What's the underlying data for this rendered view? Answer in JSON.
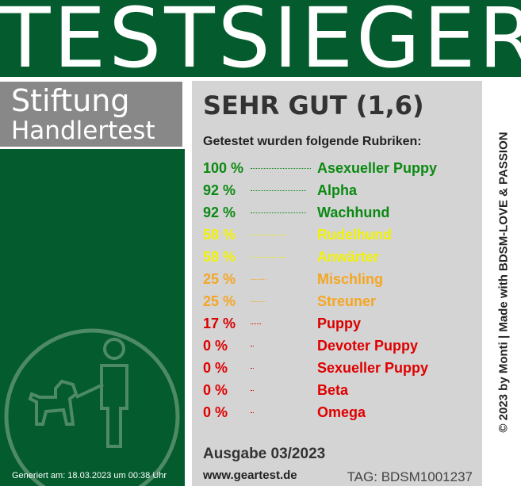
{
  "header": {
    "title": "TESTSIEGER"
  },
  "brand": {
    "line1": "Stiftung",
    "line2": "Handlertest"
  },
  "footnote": "Generiert am: 18.03.2023 um 00:38 Uhr",
  "result": {
    "rating": "SEHR GUT (1,6)",
    "intro": "Getestet wurden folgende Rubriken:",
    "items": [
      {
        "percent": "100 %",
        "value": 100,
        "label": "Asexueller Puppy",
        "color": "#0b8a12"
      },
      {
        "percent": "92 %",
        "value": 92,
        "label": "Alpha",
        "color": "#0b8a12"
      },
      {
        "percent": "92 %",
        "value": 92,
        "label": "Wachhund",
        "color": "#0b8a12"
      },
      {
        "percent": "58 %",
        "value": 58,
        "label": "Rudelhund",
        "color": "#f2f20a"
      },
      {
        "percent": "58 %",
        "value": 58,
        "label": "Anwärter",
        "color": "#f2f20a"
      },
      {
        "percent": "25 %",
        "value": 25,
        "label": "Mischling",
        "color": "#f5a623"
      },
      {
        "percent": "25 %",
        "value": 25,
        "label": "Streuner",
        "color": "#f5a623"
      },
      {
        "percent": "17 %",
        "value": 17,
        "label": "Puppy",
        "color": "#d90000"
      },
      {
        "percent": "0 %",
        "value": 0,
        "label": "Devoter Puppy",
        "color": "#e00000"
      },
      {
        "percent": "0 %",
        "value": 0,
        "label": "Sexueller Puppy",
        "color": "#e00000"
      },
      {
        "percent": "0 %",
        "value": 0,
        "label": "Beta",
        "color": "#e00000"
      },
      {
        "percent": "0 %",
        "value": 0,
        "label": "Omega",
        "color": "#e00000"
      }
    ],
    "edition": "Ausgabe 03/2023",
    "website": "www.geartest.de",
    "tag": "TAG: BDSM1001237"
  },
  "side_text": "© 2023 by Monti | Made with BDSM-LOVE & PASSION",
  "colors": {
    "header_bg": "#045c2e",
    "brand_bg": "#888888",
    "panel_bg": "#d4d4d4"
  },
  "icons": {
    "emblem": "person-walking-dog-icon"
  }
}
